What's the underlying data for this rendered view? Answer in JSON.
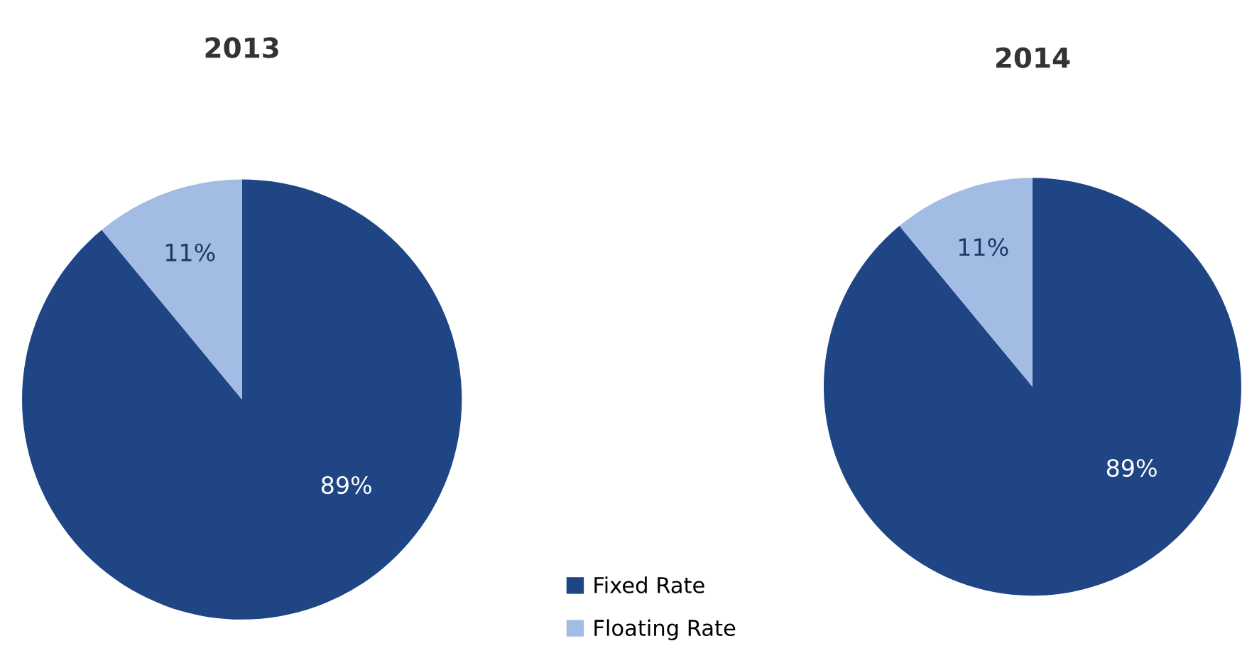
{
  "chart_data": [
    {
      "type": "pie",
      "title": "2013",
      "categories": [
        "Fixed Rate",
        "Floating Rate"
      ],
      "values": [
        89,
        11
      ],
      "colors": [
        "#1f4585",
        "#a3bce3"
      ],
      "value_labels": [
        "89%",
        "11%"
      ],
      "legend": "bottom right"
    },
    {
      "type": "pie",
      "title": "2014",
      "categories": [
        null,
        null
      ],
      "values": [
        89,
        11
      ],
      "colors": [
        "#1f4585",
        "#a3bce3"
      ],
      "value_labels": [
        "89%",
        "11%"
      ]
    }
  ]
}
